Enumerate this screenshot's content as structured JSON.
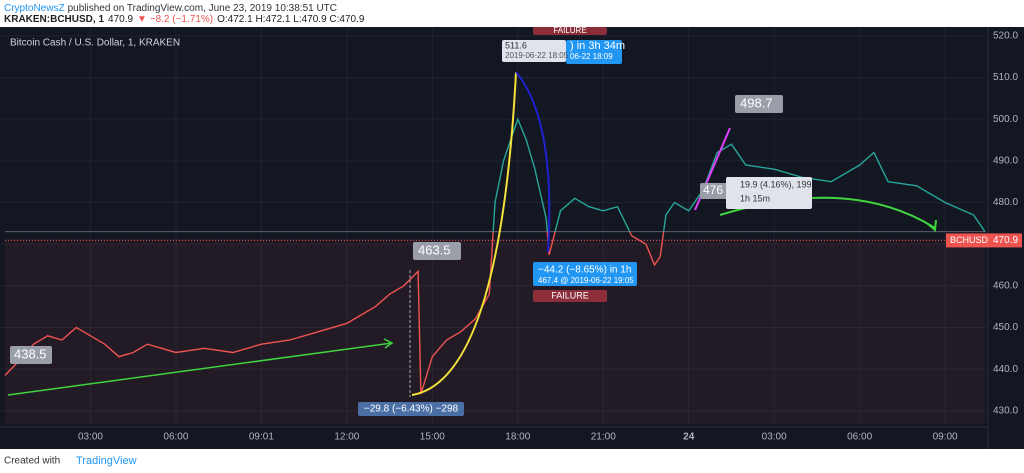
{
  "header": {
    "publisher": "CryptoNewsZ",
    "published": "published on TradingView.com, June 23, 2019 10:38:51 UTC",
    "symbol": "KRAKEN:BCHUSD, 1",
    "last": "470.9",
    "change": "▼ −8.2 (−1.71%)",
    "ohlc": "O:472.1 H:472.1 L:470.9 C:470.9"
  },
  "footer": {
    "created": "Created with",
    "brand": "TradingView"
  },
  "chart_data": {
    "type": "line",
    "title": "Bitcoin Cash / U.S. Dollar, 1, KRAKEN",
    "x": [
      0,
      0.5,
      1,
      1.5,
      2,
      2.5,
      3,
      3.5,
      4,
      4.5,
      5,
      5.5,
      6,
      7,
      8,
      9,
      10,
      11,
      12,
      12.5,
      13,
      13.5,
      14,
      14.5,
      14.6,
      15,
      15.5,
      16,
      16.5,
      17,
      17.2,
      17.5,
      18,
      18.3,
      18.6,
      19,
      19.1,
      19.5,
      20,
      20.5,
      21,
      21.5,
      22,
      22.5,
      22.8,
      23,
      23.2,
      23.5,
      24,
      24.5,
      25,
      25.5,
      26,
      27,
      28,
      29,
      30,
      30.5,
      31,
      32,
      33,
      34,
      34.4
    ],
    "series": [
      {
        "name": "BCHUSD",
        "color": "#26a69a",
        "below_color": "#ef5350",
        "values": [
          438.5,
          442,
          446,
          448,
          447,
          450,
          448,
          446,
          443,
          444,
          446,
          445,
          444,
          445,
          444,
          446,
          447,
          449,
          451,
          453,
          455,
          458,
          460,
          463.5,
          434,
          443,
          447,
          449,
          452,
          458,
          480,
          490,
          500,
          495,
          488,
          476,
          467.4,
          478,
          481,
          479,
          478,
          479,
          472,
          470,
          465,
          467,
          477,
          480,
          478,
          483,
          492,
          494,
          489,
          488,
          486,
          485,
          489,
          492,
          485,
          484,
          480,
          477,
          473
        ]
      }
    ],
    "baseline": 473,
    "xlim": [
      0,
      34.4
    ],
    "ylim": [
      426.6,
      521.4
    ],
    "xticks": [
      {
        "value": 3,
        "label": "03:00"
      },
      {
        "value": 6,
        "label": "06:00"
      },
      {
        "value": 9,
        "label": "09:01"
      },
      {
        "value": 12,
        "label": "12:00"
      },
      {
        "value": 15,
        "label": "15:00"
      },
      {
        "value": 18,
        "label": "18:00"
      },
      {
        "value": 21,
        "label": "21:00"
      },
      24,
      {
        "value": 27,
        "label": "03:00"
      },
      {
        "value": 30,
        "label": "06:00"
      },
      {
        "value": 33,
        "label": "09:00"
      }
    ],
    "yticks": [
      {
        "value": 430,
        "label": "430.0"
      },
      {
        "value": 440,
        "label": "440.0"
      },
      {
        "value": 450,
        "label": "450.0"
      },
      {
        "value": 460,
        "label": "460.0"
      },
      {
        "value": 470,
        "label": "470.0"
      },
      {
        "value": 480,
        "label": "480.0"
      },
      {
        "value": 490,
        "label": "490.0"
      },
      {
        "value": 500,
        "label": "500.0"
      },
      {
        "value": 510,
        "label": "510.0"
      },
      {
        "value": 520,
        "label": "520.0"
      }
    ],
    "grid": true,
    "price_tag": {
      "name": "BCHUSD",
      "value": 470.9,
      "label": "470.9"
    },
    "annotations": [
      "438.5",
      "463.5",
      "498.7",
      "476",
      "−29.8 (−6.43%) −298",
      "511.6",
      "2019-06-22 18:05",
      ") in 3h 34m",
      "06-22  18:09",
      "FAILURE",
      "−44.2 (−8.65%) in 1h",
      "467.4 @ 2019-06-22 19:05",
      "FAILURE",
      "19.9 (4.16%), 199",
      "1h 15m"
    ]
  }
}
